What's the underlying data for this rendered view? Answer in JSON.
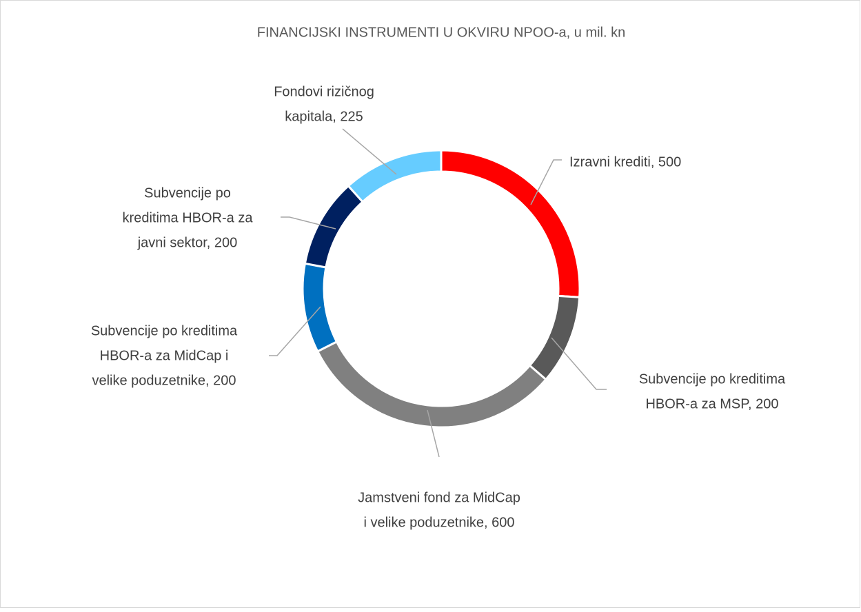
{
  "chart_data": {
    "type": "donut",
    "title": "FINANCIJSKI INSTRUMENTI U OKVIRU NPOO-a, u mil. kn",
    "values": [
      500,
      200,
      600,
      200,
      200,
      225
    ],
    "value_labels": [
      [
        "Izravni krediti, 500"
      ],
      [
        "Subvencije po kreditima",
        "HBOR-a za MSP, 200"
      ],
      [
        "Jamstveni fond za MidCap",
        "i velike poduzetnike, 600"
      ],
      [
        "Subvencije po kreditima",
        "HBOR-a za MidCap i",
        "velike poduzetnike, 200"
      ],
      [
        "Subvencije po",
        "kreditima HBOR-a za",
        "javni sektor, 200"
      ],
      [
        "Fondovi rizičnog",
        "kapitala, 225"
      ]
    ],
    "colors": [
      "#ff0000",
      "#595959",
      "#808080",
      "#0070c0",
      "#002060",
      "#66ccff"
    ]
  }
}
